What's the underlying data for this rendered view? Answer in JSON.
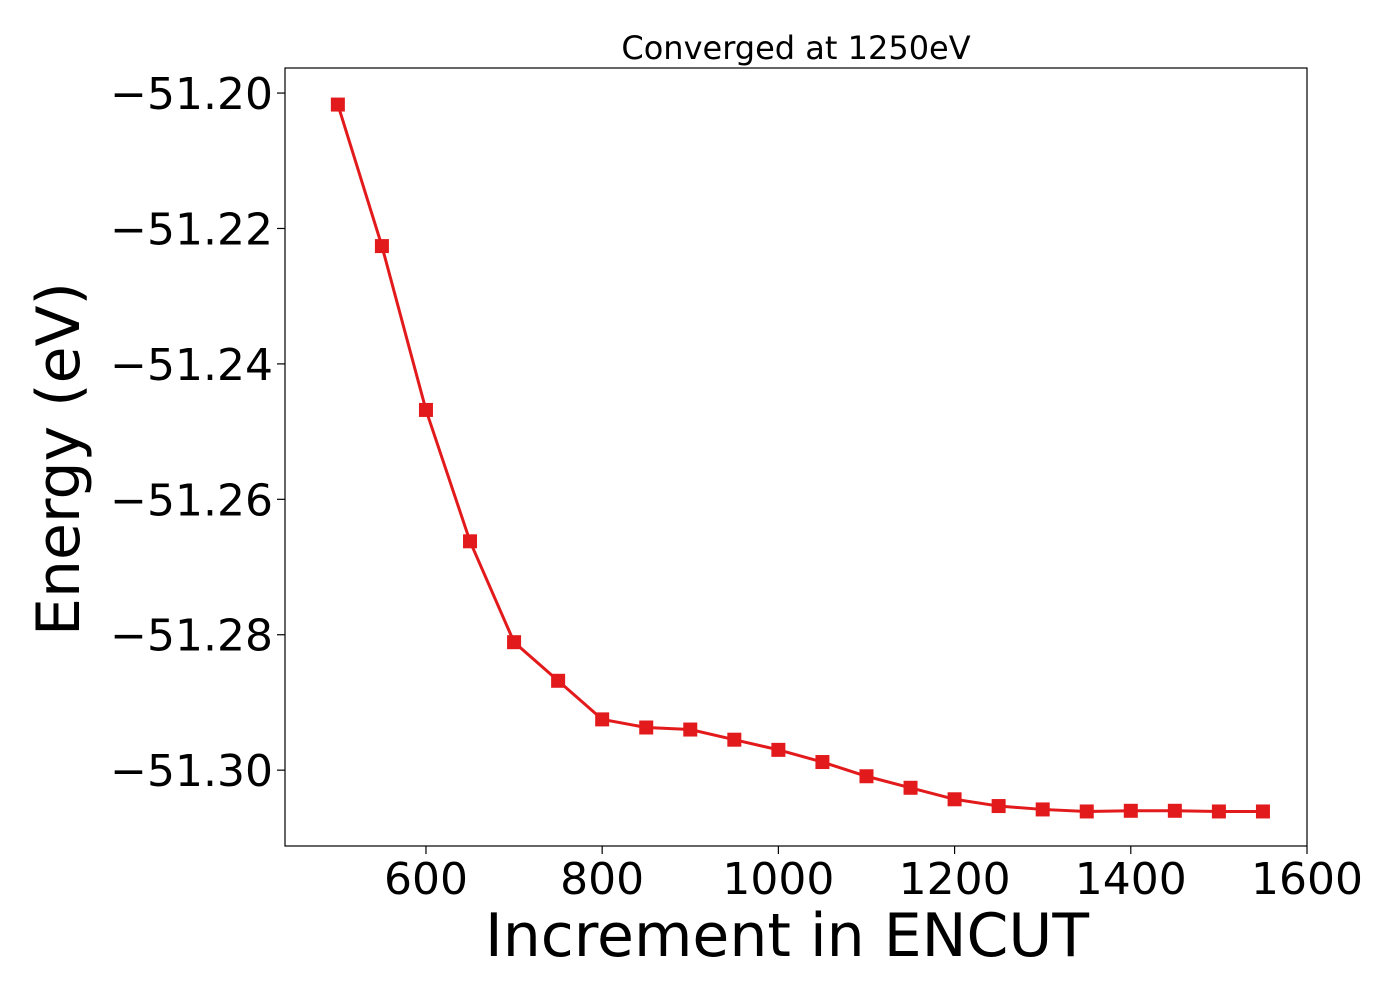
{
  "chart_data": {
    "type": "line",
    "title": "Converged at 1250eV",
    "xlabel": "Increment in ENCUT",
    "ylabel": "Energy (eV)",
    "xlim": [
      440,
      1600
    ],
    "ylim": [
      -51.3112,
      -51.1963
    ],
    "x_ticks": [
      600,
      800,
      1000,
      1200,
      1400,
      1600
    ],
    "x_tick_labels": [
      "600",
      "800",
      "1000",
      "1200",
      "1400",
      "1600"
    ],
    "y_ticks": [
      -51.2,
      -51.22,
      -51.24,
      -51.26,
      -51.28,
      -51.3
    ],
    "y_tick_labels": [
      "−51.20",
      "−51.22",
      "−51.24",
      "−51.26",
      "−51.28",
      "−51.30"
    ],
    "grid": false,
    "marker": "square",
    "color": "#e31a1c",
    "series": [
      {
        "x": [
          500,
          550,
          600,
          650,
          700,
          750,
          800,
          850,
          900,
          950,
          1000,
          1050,
          1100,
          1150,
          1200,
          1250,
          1300,
          1350,
          1400,
          1450,
          1500,
          1550
        ],
        "values": [
          -51.2017,
          -51.2226,
          -51.2468,
          -51.2662,
          -51.2811,
          -51.2868,
          -51.2925,
          -51.2937,
          -51.294,
          -51.2955,
          -51.297,
          -51.2988,
          -51.3009,
          -51.3026,
          -51.3043,
          -51.3053,
          -51.3058,
          -51.3061,
          -51.306,
          -51.306,
          -51.3061,
          -51.3061
        ]
      }
    ]
  }
}
